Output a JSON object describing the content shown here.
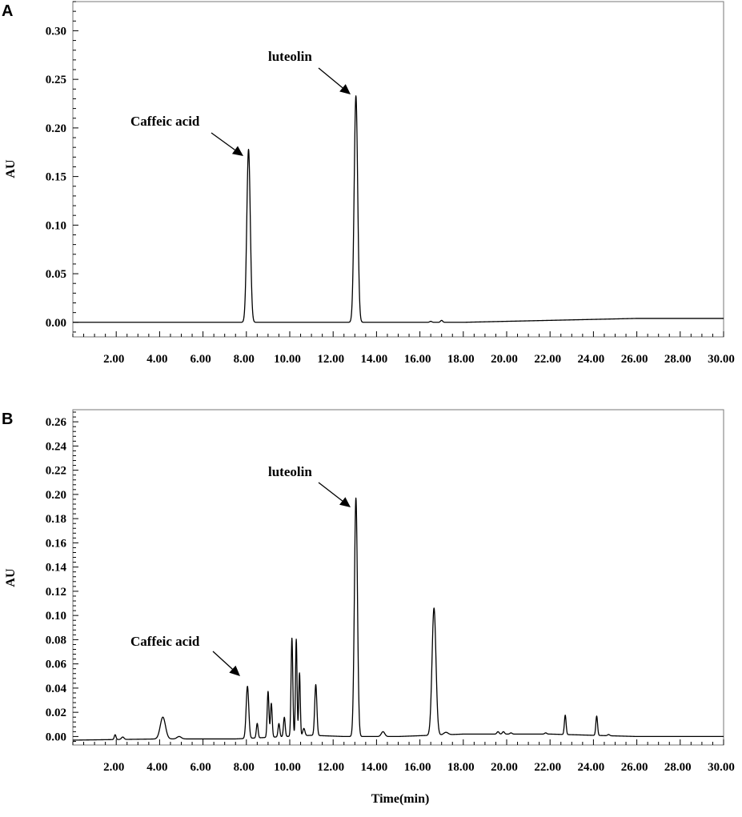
{
  "chart_data": [
    {
      "panel": "A",
      "type": "line",
      "xlabel": "",
      "ylabel": "AU",
      "xlim": [
        0,
        30
      ],
      "ylim": [
        -0.015,
        0.33
      ],
      "x_ticks": [
        "2.00",
        "4.00",
        "6.00",
        "8.00",
        "10.00",
        "12.00",
        "14.00",
        "16.00",
        "18.00",
        "20.00",
        "22.00",
        "24.00",
        "26.00",
        "28.00",
        "30.00"
      ],
      "y_ticks": [
        "0.00",
        "0.05",
        "0.10",
        "0.15",
        "0.20",
        "0.25",
        "0.30"
      ],
      "y_tick_values": [
        0,
        0.05,
        0.1,
        0.15,
        0.2,
        0.25,
        0.3
      ],
      "baseline": [
        [
          0,
          0.0
        ],
        [
          6,
          0.0
        ],
        [
          14,
          0.0
        ],
        [
          18,
          0.0
        ],
        [
          20,
          0.001
        ],
        [
          24,
          0.003
        ],
        [
          26,
          0.004
        ],
        [
          30,
          0.004
        ]
      ],
      "peaks": [
        {
          "rt": 8.1,
          "height": 0.178,
          "width": 0.08
        },
        {
          "rt": 13.05,
          "height": 0.233,
          "width": 0.08
        },
        {
          "rt": 16.5,
          "height": 0.001,
          "width": 0.05
        },
        {
          "rt": 17.0,
          "height": 0.002,
          "width": 0.05
        }
      ],
      "annotations": [
        {
          "text": "luteolin",
          "peak_rt": 13.05
        },
        {
          "text": "Caffeic acid",
          "peak_rt": 8.1
        }
      ]
    },
    {
      "panel": "B",
      "type": "line",
      "xlabel": "Time(min)",
      "ylabel": "AU",
      "xlim": [
        0,
        30
      ],
      "ylim": [
        -0.007,
        0.27
      ],
      "x_ticks": [
        "2.00",
        "4.00",
        "6.00",
        "8.00",
        "10.00",
        "12.00",
        "14.00",
        "16.00",
        "18.00",
        "20.00",
        "22.00",
        "24.00",
        "26.00",
        "28.00",
        "30.00"
      ],
      "y_ticks": [
        "0.00",
        "0.02",
        "0.04",
        "0.06",
        "0.08",
        "0.10",
        "0.12",
        "0.14",
        "0.16",
        "0.18",
        "0.20",
        "0.22",
        "0.24",
        "0.26"
      ],
      "y_tick_values": [
        0,
        0.02,
        0.04,
        0.06,
        0.08,
        0.1,
        0.12,
        0.14,
        0.16,
        0.18,
        0.2,
        0.22,
        0.24,
        0.26
      ],
      "baseline": [
        [
          0,
          -0.003
        ],
        [
          4,
          -0.002
        ],
        [
          7.5,
          -0.002
        ],
        [
          11,
          0.001
        ],
        [
          12.5,
          0.0
        ],
        [
          15,
          0.0
        ],
        [
          18,
          0.002
        ],
        [
          22,
          0.002
        ],
        [
          26,
          0.0
        ],
        [
          30,
          0.0
        ]
      ],
      "peaks": [
        {
          "rt": 1.95,
          "height": 0.004,
          "width": 0.04
        },
        {
          "rt": 2.3,
          "height": 0.002,
          "width": 0.06
        },
        {
          "rt": 4.15,
          "height": 0.018,
          "width": 0.12
        },
        {
          "rt": 4.9,
          "height": 0.002,
          "width": 0.1
        },
        {
          "rt": 8.05,
          "height": 0.043,
          "width": 0.06
        },
        {
          "rt": 8.5,
          "height": 0.012,
          "width": 0.04
        },
        {
          "rt": 9.0,
          "height": 0.038,
          "width": 0.04
        },
        {
          "rt": 9.15,
          "height": 0.028,
          "width": 0.04
        },
        {
          "rt": 9.5,
          "height": 0.011,
          "width": 0.04
        },
        {
          "rt": 9.75,
          "height": 0.016,
          "width": 0.04
        },
        {
          "rt": 10.1,
          "height": 0.081,
          "width": 0.04
        },
        {
          "rt": 10.3,
          "height": 0.08,
          "width": 0.035
        },
        {
          "rt": 10.45,
          "height": 0.052,
          "width": 0.035
        },
        {
          "rt": 10.65,
          "height": 0.006,
          "width": 0.05
        },
        {
          "rt": 11.2,
          "height": 0.042,
          "width": 0.05
        },
        {
          "rt": 13.05,
          "height": 0.197,
          "width": 0.07
        },
        {
          "rt": 14.3,
          "height": 0.004,
          "width": 0.08
        },
        {
          "rt": 16.65,
          "height": 0.105,
          "width": 0.09
        },
        {
          "rt": 17.2,
          "height": 0.002,
          "width": 0.1
        },
        {
          "rt": 19.6,
          "height": 0.002,
          "width": 0.05
        },
        {
          "rt": 19.85,
          "height": 0.002,
          "width": 0.05
        },
        {
          "rt": 20.2,
          "height": 0.001,
          "width": 0.05
        },
        {
          "rt": 21.8,
          "height": 0.001,
          "width": 0.05
        },
        {
          "rt": 22.7,
          "height": 0.016,
          "width": 0.04
        },
        {
          "rt": 24.15,
          "height": 0.016,
          "width": 0.04
        },
        {
          "rt": 24.7,
          "height": 0.001,
          "width": 0.05
        }
      ],
      "annotations": [
        {
          "text": "luteolin",
          "peak_rt": 13.05
        },
        {
          "text": "Caffeic acid",
          "peak_rt": 8.05
        }
      ]
    }
  ]
}
